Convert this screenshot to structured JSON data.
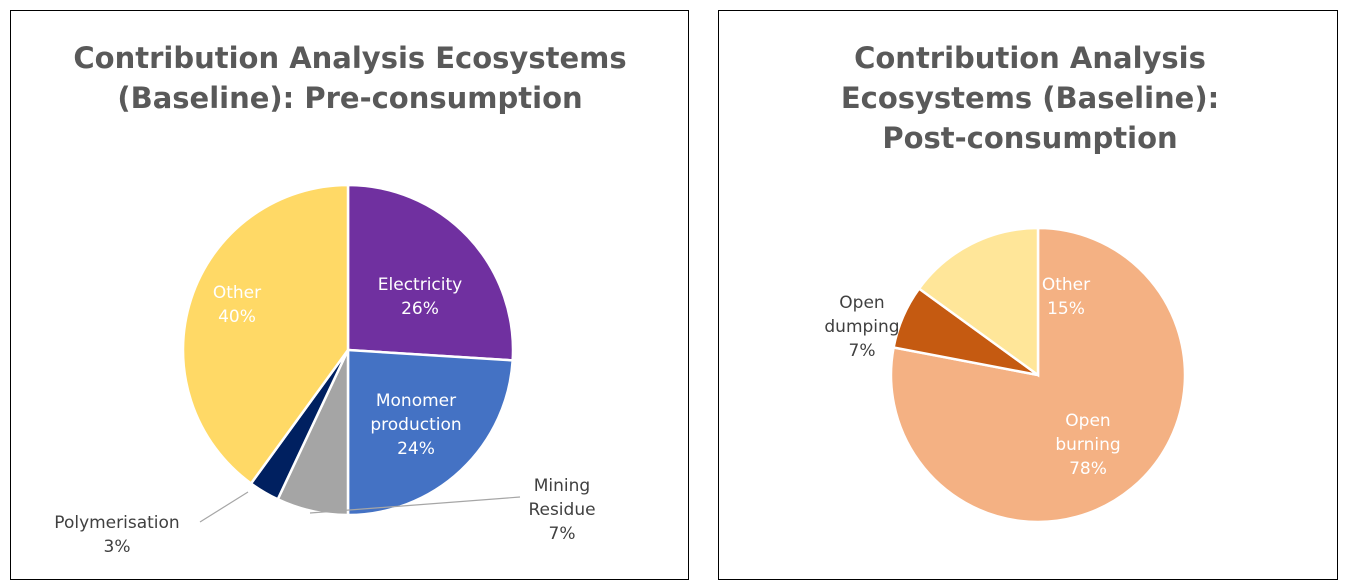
{
  "chart_data": [
    {
      "type": "pie",
      "title": "Contribution Analysis Ecosystems (Baseline): Pre-consumption",
      "categories": [
        "Electricity",
        "Monomer production",
        "Mining Residue",
        "Polymerisation",
        "Other"
      ],
      "values": [
        26,
        24,
        7,
        3,
        40
      ],
      "value_labels": [
        "26%",
        "24%",
        "7%",
        "3%",
        "40%"
      ],
      "colors": [
        "#7030a0",
        "#4472c4",
        "#a5a5a5",
        "#002060",
        "#ffd966"
      ]
    },
    {
      "type": "pie",
      "title": "Contribution Analysis Ecosystems (Baseline): Post-consumption",
      "categories": [
        "Open burning",
        "Open dumping",
        "Other"
      ],
      "values": [
        78,
        7,
        15
      ],
      "value_labels": [
        "78%",
        "7%",
        "15%"
      ],
      "colors": [
        "#f4b183",
        "#c55a11",
        "#ffe699"
      ]
    }
  ]
}
